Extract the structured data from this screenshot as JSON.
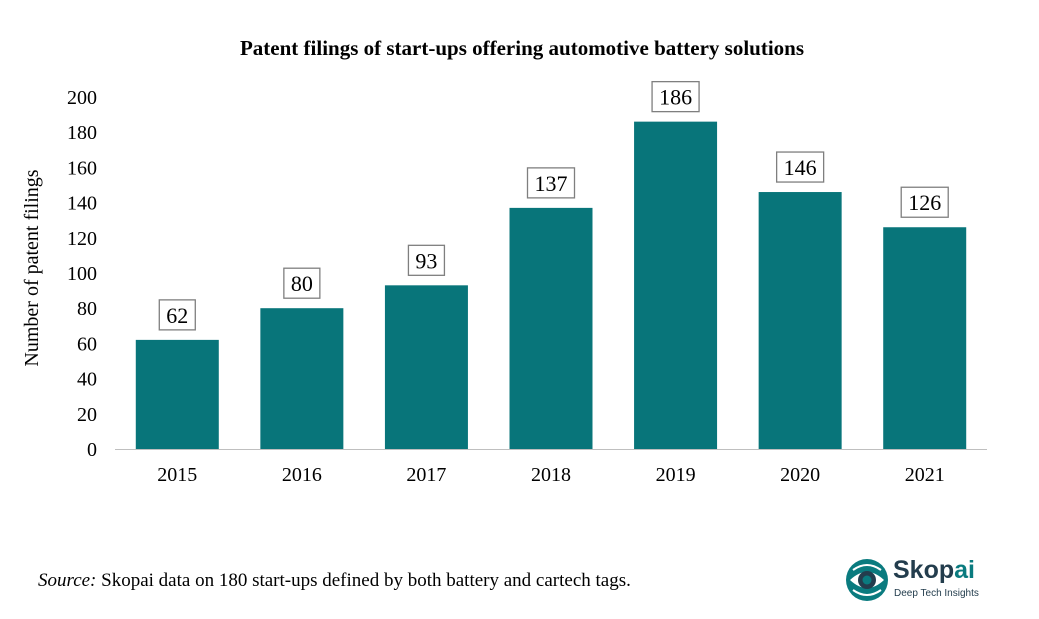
{
  "chart_data": {
    "type": "bar",
    "title": "Patent filings of start-ups offering automotive battery solutions",
    "xlabel": "",
    "ylabel": "Number of patent filings",
    "categories": [
      "2015",
      "2016",
      "2017",
      "2018",
      "2019",
      "2020",
      "2021"
    ],
    "values": [
      62,
      80,
      93,
      137,
      186,
      146,
      126
    ],
    "ylim": [
      0,
      200
    ],
    "yticks": [
      0,
      20,
      40,
      60,
      80,
      100,
      120,
      140,
      160,
      180,
      200
    ],
    "grid": false,
    "legend": "none",
    "data_labels": true,
    "bar_color": "#08757a"
  },
  "source": {
    "prefix": "Source:",
    "text": " Skopai data on 180 start-ups defined by both battery and cartech tags."
  },
  "logo": {
    "name_main": "Skop",
    "name_accent": "ai",
    "tagline": "Deep Tech Insights",
    "icon": "skopai-eye-icon",
    "color_dark": "#233d4d",
    "color_accent": "#0a7b7f"
  }
}
